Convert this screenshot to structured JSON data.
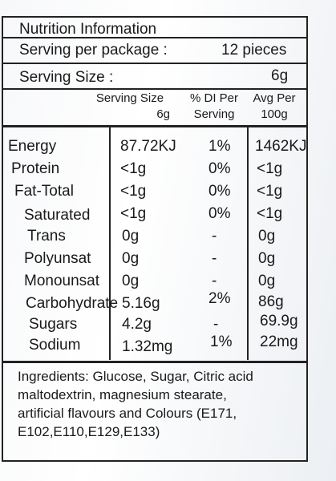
{
  "title": "Nutrition Information",
  "serving_per_package_label": "Serving per package :",
  "serving_per_package_value": "12 pieces",
  "serving_size_label": "Serving Size :",
  "serving_size_value": "6g",
  "columns": {
    "serving_line1": "Serving Size",
    "serving_line2": "6g",
    "di_line1": "% DI Per",
    "di_line2": "Serving",
    "avg_line1": "Avg Per",
    "avg_line2": "100g"
  },
  "rows": [
    {
      "name": "Energy",
      "serving": "87.72KJ",
      "di": "1%",
      "avg": "1462KJ"
    },
    {
      "name": "Protein",
      "serving": "<1g",
      "di": "0%",
      "avg": "<1g"
    },
    {
      "name": "Fat-Total",
      "serving": "<1g",
      "di": "0%",
      "avg": "<1g"
    },
    {
      "name": "Saturated",
      "serving": "<1g",
      "di": "0%",
      "avg": "<1g"
    },
    {
      "name": "Trans",
      "serving": "0g",
      "di": "-",
      "avg": "0g"
    },
    {
      "name": "Polyunsat",
      "serving": "0g",
      "di": "-",
      "avg": "0g"
    },
    {
      "name": "Monounsat",
      "serving": "0g",
      "di": "-",
      "avg": "0g"
    },
    {
      "name": "Carbohydrate",
      "serving": "5.16g",
      "di": "2%",
      "avg": "86g"
    },
    {
      "name": "Sugars",
      "serving": "4.2g",
      "di": "-",
      "avg": "69.9g"
    },
    {
      "name": "Sodium",
      "serving": "1.32mg",
      "di": "1%",
      "avg": "22mg"
    }
  ],
  "ingredients": {
    "line1": "Ingredients: Glucose, Sugar, Citric acid",
    "line2": "maltodextrin, magnesium stearate,",
    "line3": "artificial flavours and Colours (E171,",
    "line4": "E102,E110,E129,E133)"
  }
}
